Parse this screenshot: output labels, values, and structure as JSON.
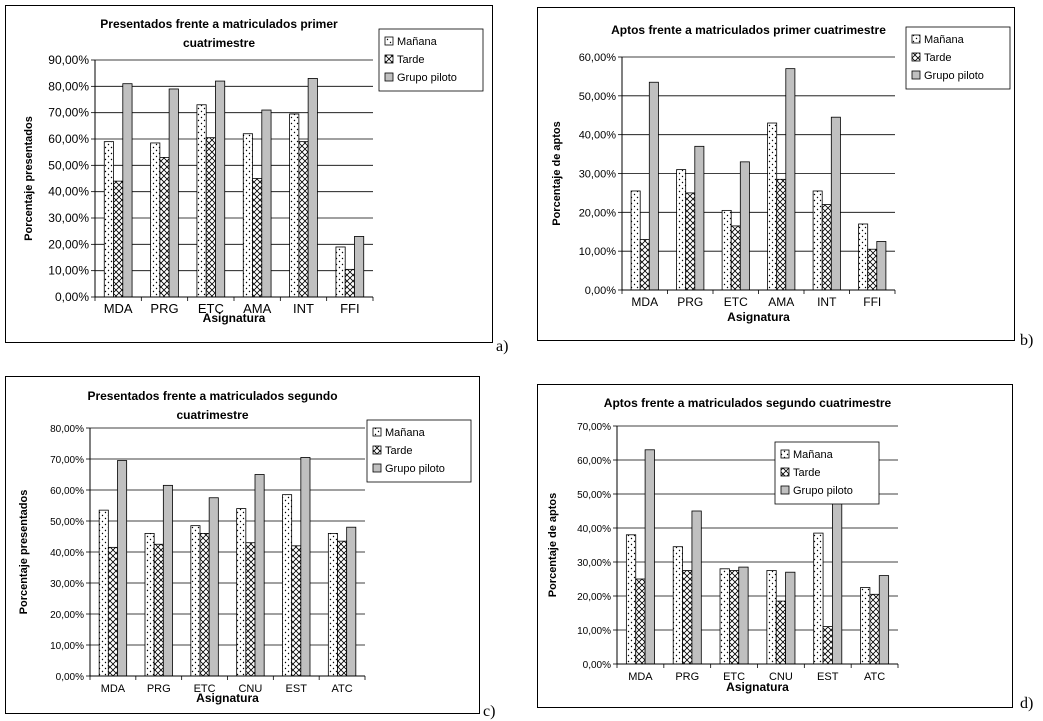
{
  "colors": {
    "manana_fill": "#ffffff",
    "tarde_fill": "#ffffff",
    "piloto_fill": "#c0c0c0",
    "grid": "#000000",
    "border": "#000000"
  },
  "chart_data": [
    {
      "id": "a",
      "type": "bar",
      "title_lines": [
        "Presentados frente a matriculados primer",
        "cuatrimestre"
      ],
      "xlabel": "Asignatura",
      "ylabel": "Porcentaje presentados",
      "ylim": [
        0,
        90
      ],
      "ytick_step": 10,
      "ytick_labels": [
        "0,00%",
        "10,00%",
        "20,00%",
        "30,00%",
        "40,00%",
        "50,00%",
        "60,00%",
        "70,00%",
        "80,00%",
        "90,00%"
      ],
      "categories": [
        "MDA",
        "PRG",
        "ETC",
        "AMA",
        "INT",
        "FFI"
      ],
      "series": [
        {
          "name": "Mañana",
          "values": [
            59,
            58.5,
            73,
            62,
            69.5,
            19
          ]
        },
        {
          "name": "Tarde",
          "values": [
            44,
            53,
            60.5,
            45,
            59,
            10.5
          ]
        },
        {
          "name": "Grupo piloto",
          "values": [
            81,
            79,
            82,
            71,
            83,
            23
          ]
        }
      ],
      "legend_position": "right",
      "grid": true,
      "panel_label": "a)"
    },
    {
      "id": "b",
      "type": "bar",
      "title_lines": [
        "Aptos frente a matriculados primer cuatrimestre"
      ],
      "xlabel": "Asignatura",
      "ylabel": "Porcentaje de aptos",
      "ylim": [
        0,
        60
      ],
      "ytick_step": 10,
      "ytick_labels": [
        "0,00%",
        "10,00%",
        "20,00%",
        "30,00%",
        "40,00%",
        "50,00%",
        "60,00%"
      ],
      "categories": [
        "MDA",
        "PRG",
        "ETC",
        "AMA",
        "INT",
        "FFI"
      ],
      "series": [
        {
          "name": "Mañana",
          "values": [
            25.5,
            31,
            20.5,
            43,
            25.5,
            17
          ]
        },
        {
          "name": "Tarde",
          "values": [
            13,
            25,
            16.5,
            28.5,
            22,
            10.5
          ]
        },
        {
          "name": "Grupo piloto",
          "values": [
            53.5,
            37,
            33,
            57,
            44.5,
            12.5
          ]
        }
      ],
      "legend_position": "right",
      "grid": true,
      "panel_label": "b)"
    },
    {
      "id": "c",
      "type": "bar",
      "title_lines": [
        "Presentados frente a matriculados segundo",
        "cuatrimestre"
      ],
      "xlabel": "Asignatura",
      "ylabel": "Porcentaje presentados",
      "ylim": [
        0,
        80
      ],
      "ytick_step": 10,
      "ytick_labels": [
        "0,00%",
        "10,00%",
        "20,00%",
        "30,00%",
        "40,00%",
        "50,00%",
        "60,00%",
        "70,00%",
        "80,00%"
      ],
      "categories": [
        "MDA",
        "PRG",
        "ETC",
        "CNU",
        "EST",
        "ATC"
      ],
      "series": [
        {
          "name": "Mañana",
          "values": [
            53.5,
            46,
            48.5,
            54,
            58.5,
            46
          ]
        },
        {
          "name": "Tarde",
          "values": [
            41.5,
            42.5,
            46,
            43,
            42,
            43.5
          ]
        },
        {
          "name": "Grupo piloto",
          "values": [
            69.5,
            61.5,
            57.5,
            65,
            70.5,
            48
          ]
        }
      ],
      "legend_position": "right",
      "grid": true,
      "panel_label": "c)"
    },
    {
      "id": "d",
      "type": "bar",
      "title_lines": [
        "Aptos frente a matriculados segundo cuatrimestre"
      ],
      "xlabel": "Asignatura",
      "ylabel": "Porcentaje de aptos",
      "ylim": [
        0,
        70
      ],
      "ytick_step": 10,
      "ytick_labels": [
        "0,00%",
        "10,00%",
        "20,00%",
        "30,00%",
        "40,00%",
        "50,00%",
        "60,00%",
        "70,00%"
      ],
      "categories": [
        "MDA",
        "PRG",
        "ETC",
        "CNU",
        "EST",
        "ATC"
      ],
      "series": [
        {
          "name": "Mañana",
          "values": [
            38,
            34.5,
            28,
            27.5,
            38.5,
            22.5
          ]
        },
        {
          "name": "Tarde",
          "values": [
            25,
            27.5,
            27.5,
            18.5,
            11,
            20.5
          ]
        },
        {
          "name": "Grupo piloto",
          "values": [
            63,
            45,
            28.5,
            27,
            60.5,
            26
          ]
        }
      ],
      "legend_position": "top-left",
      "grid": true,
      "panel_label": "d)"
    }
  ]
}
